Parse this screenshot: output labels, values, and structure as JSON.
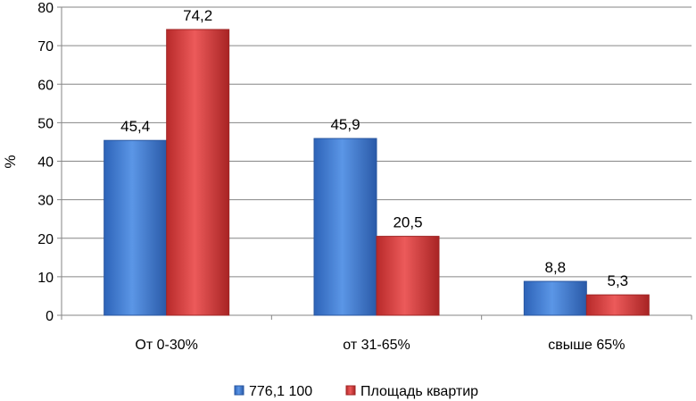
{
  "chart_data": {
    "type": "bar",
    "categories": [
      "От 0-30%",
      "от 31-65%",
      "свыше 65%"
    ],
    "series": [
      {
        "name": "776,1 100",
        "values": [
          45.4,
          45.9,
          8.8
        ],
        "labels": [
          "45,4",
          "45,9",
          "8,8"
        ],
        "color": "#4a84d4"
      },
      {
        "name": "Площадь квартир",
        "values": [
          74.2,
          20.5,
          5.3
        ],
        "labels": [
          "74,2",
          "20,5",
          "5,3"
        ],
        "color": "#d94444"
      }
    ],
    "ylabel": "%",
    "xlabel": "",
    "ylim": [
      0,
      80
    ],
    "yticks": [
      0,
      10,
      20,
      30,
      40,
      50,
      60,
      70,
      80
    ],
    "grid": true,
    "legend_position": "bottom"
  }
}
